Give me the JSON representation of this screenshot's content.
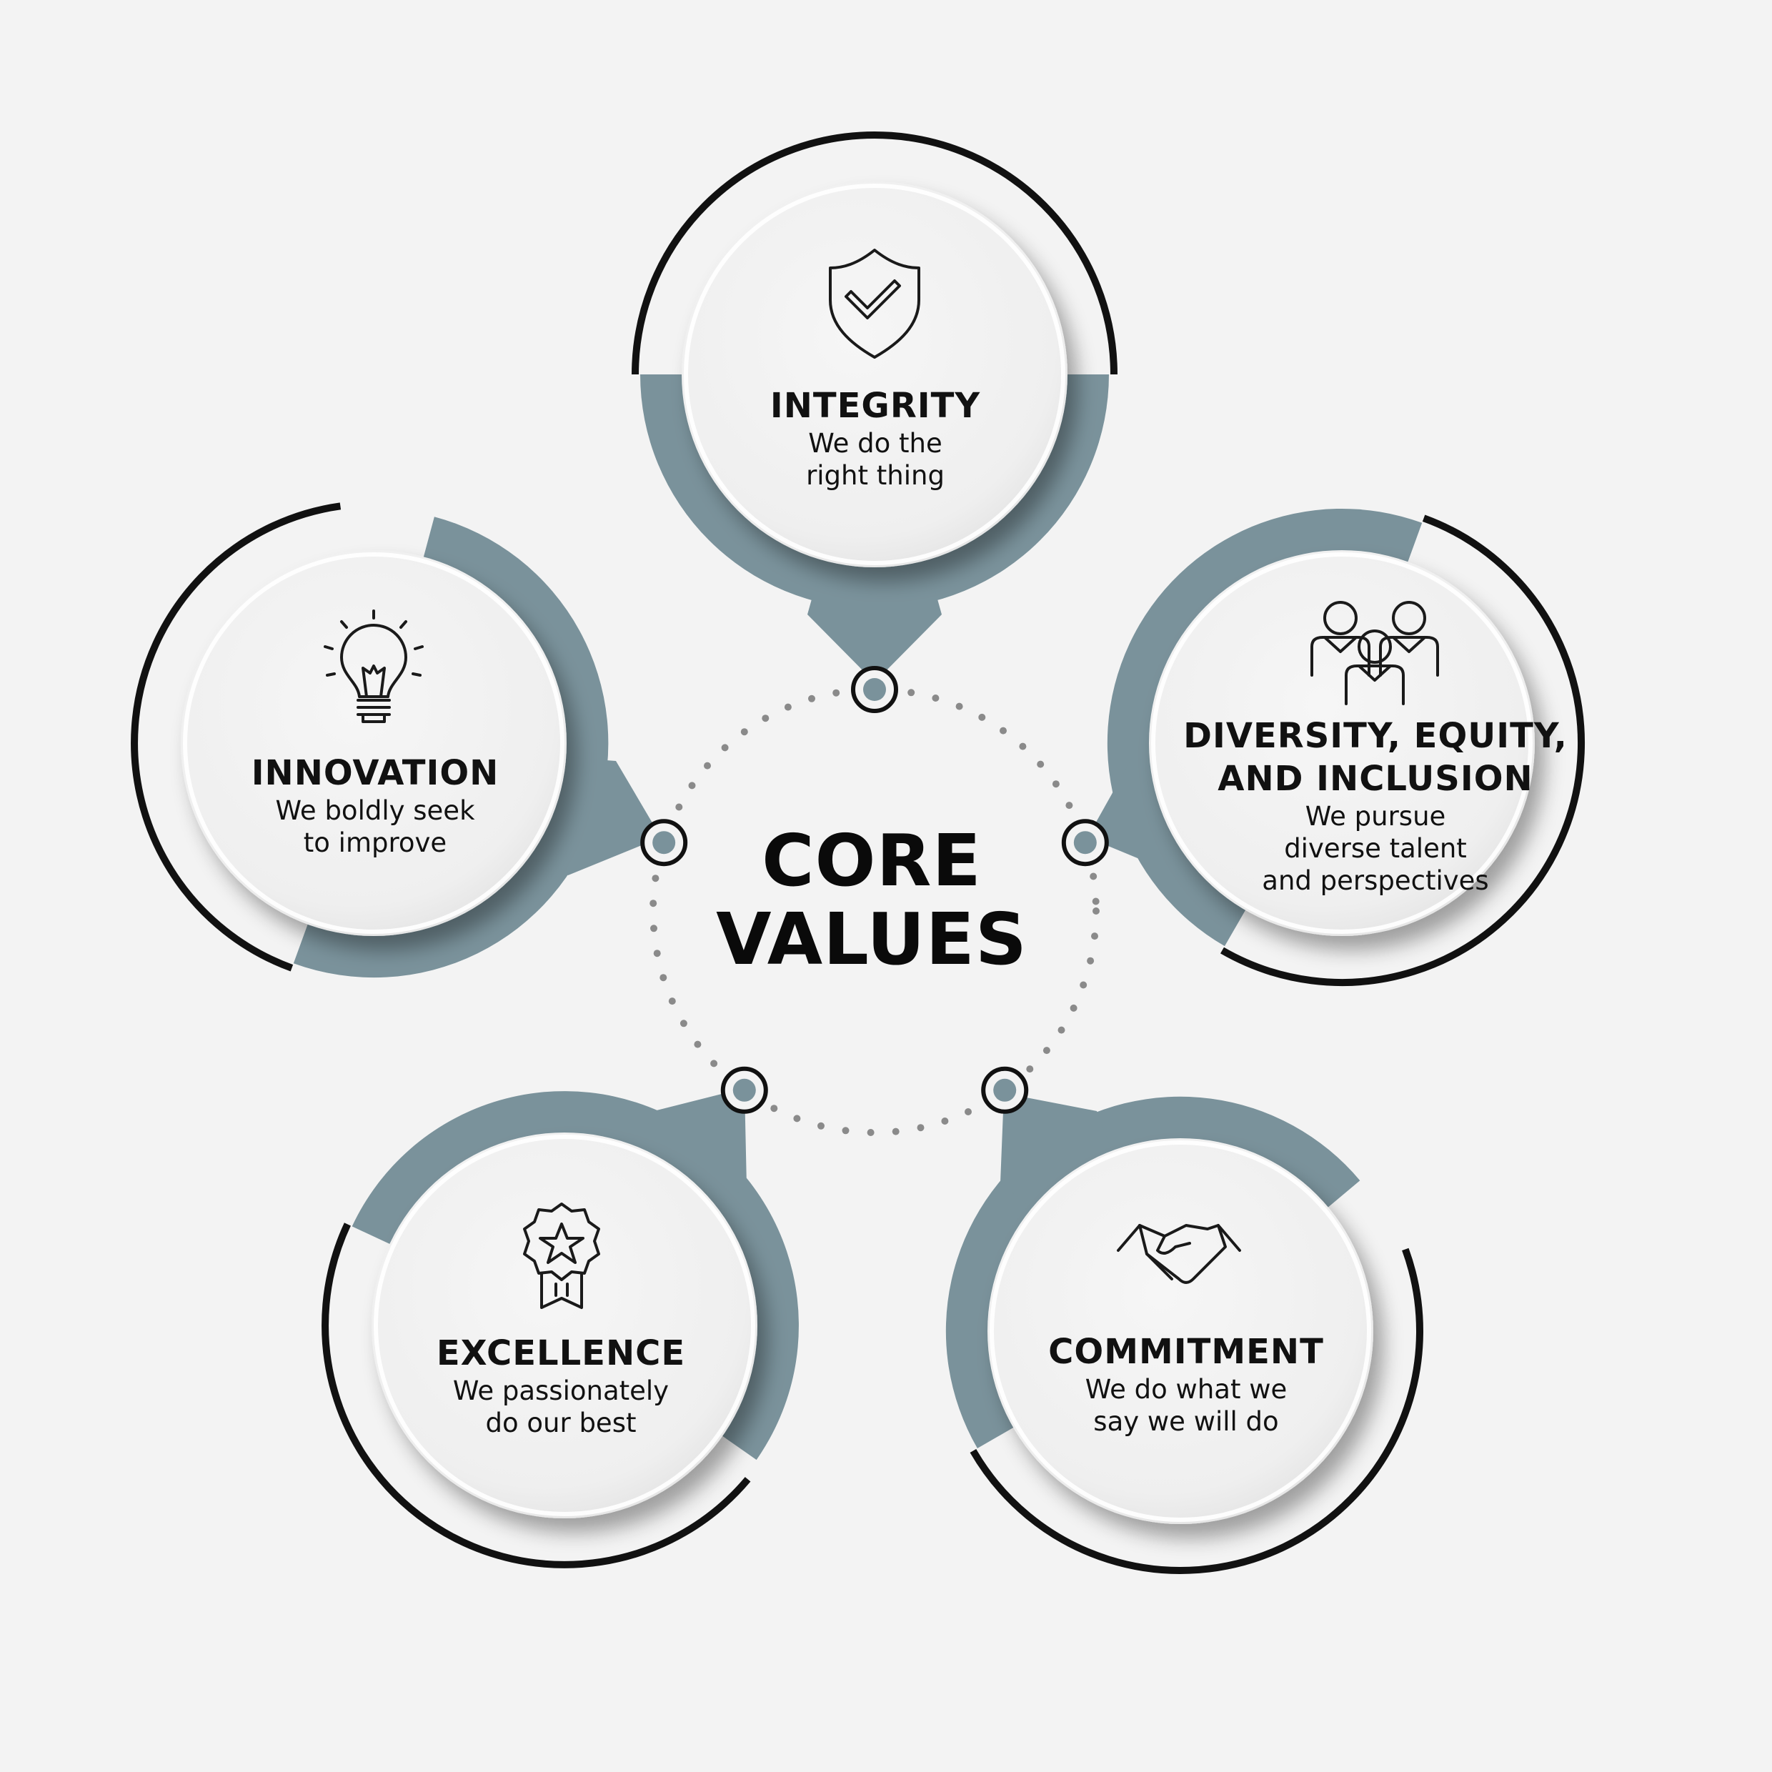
{
  "center": {
    "line1": "CORE",
    "line2": "VALUES"
  },
  "colors": {
    "background": "#f3f3f3",
    "accent": "#7a929b",
    "ring": "#111111",
    "disc": "#f2f2f2"
  },
  "values": [
    {
      "title": "INTEGRITY",
      "title2": "",
      "desc": [
        "We do the",
        "right thing"
      ],
      "icon": "shield-check-icon"
    },
    {
      "title": "DIVERSITY, EQUITY,",
      "title2": "AND INCLUSION",
      "desc": [
        "We pursue",
        "diverse talent",
        "and perspectives"
      ],
      "icon": "team-icon"
    },
    {
      "title": "COMMITMENT",
      "title2": "",
      "desc": [
        "We do what we",
        "say we will do"
      ],
      "icon": "handshake-icon"
    },
    {
      "title": "EXCELLENCE",
      "title2": "",
      "desc": [
        "We passionately",
        "do our best"
      ],
      "icon": "award-ribbon-icon"
    },
    {
      "title": "INNOVATION",
      "title2": "",
      "desc": [
        "We boldly seek",
        "to improve"
      ],
      "icon": "lightbulb-icon"
    }
  ]
}
